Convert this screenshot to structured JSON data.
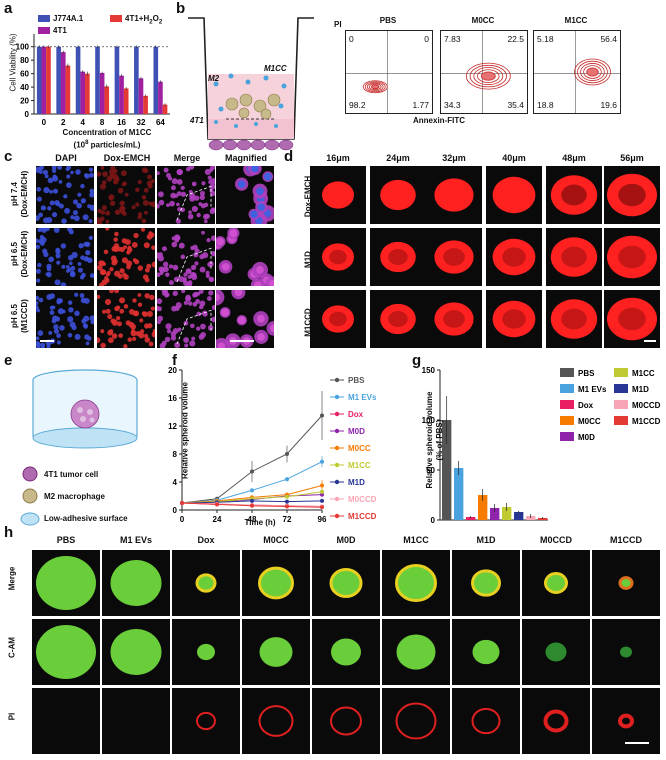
{
  "panels": {
    "a": "a",
    "b": "b",
    "c": "c",
    "d": "d",
    "e": "e",
    "f": "f",
    "g": "g",
    "h": "h"
  },
  "panel_a": {
    "chart_data": {
      "type": "bar",
      "categories": [
        "0",
        "2",
        "4",
        "8",
        "16",
        "32",
        "64"
      ],
      "series": [
        {
          "name": "J774A.1",
          "color": "#3f51b5",
          "values": [
            100,
            100,
            100,
            100,
            100,
            100,
            100
          ]
        },
        {
          "name": "4T1",
          "color": "#a020a0",
          "values": [
            100,
            92,
            63,
            61,
            57,
            53,
            48
          ]
        },
        {
          "name": "4T1+H2O2",
          "color": "#e53935",
          "values": [
            100,
            72,
            60,
            41,
            38,
            27,
            14
          ]
        }
      ],
      "errors": [
        [
          2,
          2,
          2,
          2,
          2,
          2,
          2
        ],
        [
          2,
          2,
          2,
          2,
          2,
          2,
          2
        ],
        [
          2,
          3,
          3,
          3,
          2,
          2,
          2
        ]
      ],
      "xlabel_line1": "Concentration of M1CC",
      "xlabel_line2": "(10",
      "xlabel_sup": "8",
      "xlabel_line2b": " particles/mL)",
      "ylabel": "Cell Viability (%)",
      "yticks": [
        "0",
        "20",
        "40",
        "60",
        "80",
        "100"
      ],
      "ylim": [
        0,
        110
      ],
      "dashed_line": 100
    },
    "legend": {
      "j774": "J774A.1",
      "h2o2": "4T1+H",
      "h2o2_sub": "2",
      "h2o2_o": "O",
      "h2o2_sub2": "2",
      "t41": "4T1"
    }
  },
  "panel_b": {
    "labels": {
      "m2": "M2",
      "m1cc": "M1CC",
      "t41": "4T1",
      "pi": "PI",
      "annexin": "Annexin-FITC"
    },
    "plots": [
      {
        "title": "PBS",
        "ul": "0",
        "ur": "0",
        "ll": "98.2",
        "lr": "1.77"
      },
      {
        "title": "M0CC",
        "ul": "7.83",
        "ur": "22.5",
        "ll": "34.3",
        "lr": "35.4"
      },
      {
        "title": "M1CC",
        "ul": "5.18",
        "ur": "56.4",
        "ll": "18.8",
        "lr": "19.6"
      }
    ]
  },
  "panel_c": {
    "cols": [
      "DAPI",
      "Dox-EMCH",
      "Merge",
      "Magnified"
    ],
    "rows": [
      {
        "l1": "pH 7.4",
        "l2": "(Dox-EMCH)"
      },
      {
        "l1": "pH 6.5",
        "l2": "(Dox-EMCH)"
      },
      {
        "l1": "pH 6.5",
        "l2": "(M1CCD)"
      }
    ]
  },
  "panel_d": {
    "cols": [
      "16μm",
      "24μm",
      "32μm",
      "40μm",
      "48μm",
      "56μm"
    ],
    "rows": [
      "Dox-EMCH",
      "M1D",
      "M1CCD"
    ]
  },
  "panel_e": {
    "legend": [
      "4T1 tumor cell",
      "M2 macrophage",
      "Low-adhesive surface"
    ]
  },
  "panel_f": {
    "chart_data": {
      "type": "line",
      "x": [
        0,
        24,
        48,
        72,
        96
      ],
      "xlabel": "Time (h)",
      "ylabel": "Relative spheroid volume",
      "xlim": [
        0,
        96
      ],
      "ylim": [
        0,
        20
      ],
      "yticks": [
        "0",
        "4",
        "8",
        "12",
        "16",
        "20"
      ],
      "xticks": [
        "0",
        "24",
        "48",
        "72",
        "96"
      ],
      "series": [
        {
          "name": "PBS",
          "color": "#555555",
          "marker": "circle",
          "values": [
            1,
            1.6,
            5.5,
            8,
            13.5
          ],
          "err": [
            0.2,
            0.3,
            1.5,
            1.2,
            3.5
          ]
        },
        {
          "name": "M1 EVs",
          "color": "#4aa3df",
          "marker": "triangle",
          "values": [
            1,
            1.4,
            2.8,
            4.4,
            6.9
          ],
          "err": [
            0.1,
            0.2,
            0.3,
            0.3,
            0.8
          ]
        },
        {
          "name": "Dox",
          "color": "#e91e63",
          "marker": "square",
          "values": [
            1,
            0.8,
            0.7,
            0.6,
            0.5
          ],
          "err": [
            0.1,
            0.1,
            0.1,
            0.1,
            0.1
          ]
        },
        {
          "name": "M0D",
          "color": "#8e24aa",
          "marker": "diamond",
          "values": [
            1,
            1.2,
            1.5,
            2,
            2.2
          ],
          "err": [
            0.1,
            0.1,
            0.2,
            0.2,
            0.3
          ]
        },
        {
          "name": "M0CC",
          "color": "#f57c00",
          "marker": "square",
          "values": [
            1,
            1.3,
            1.8,
            2.2,
            3.5
          ],
          "err": [
            0.1,
            0.2,
            0.3,
            0.3,
            0.8
          ]
        },
        {
          "name": "M1CC",
          "color": "#c0ca33",
          "marker": "triangle",
          "values": [
            1,
            1.2,
            1.6,
            1.9,
            2.6
          ],
          "err": [
            0.1,
            0.1,
            0.2,
            0.2,
            0.3
          ]
        },
        {
          "name": "M1D",
          "color": "#283593",
          "marker": "triangle",
          "values": [
            1,
            1.1,
            1.3,
            1.2,
            1.3
          ],
          "err": [
            0.1,
            0.1,
            0.1,
            0.1,
            0.1
          ]
        },
        {
          "name": "M0CCD",
          "color": "#f8a5b5",
          "marker": "circle",
          "values": [
            1,
            0.9,
            0.7,
            0.6,
            0.5
          ],
          "err": [
            0.1,
            0.1,
            0.1,
            0.1,
            0.1
          ]
        },
        {
          "name": "M1CCD",
          "color": "#e53935",
          "marker": "circle",
          "values": [
            1,
            0.8,
            0.6,
            0.5,
            0.4
          ],
          "err": [
            0.1,
            0.1,
            0.1,
            0.1,
            0.1
          ]
        }
      ]
    }
  },
  "panel_g": {
    "chart_data": {
      "type": "bar",
      "categories": [
        "PBS",
        "M1 EVs",
        "Dox",
        "M0CC",
        "M0D",
        "M1CC",
        "M1D",
        "M0CCD",
        "M1CCD"
      ],
      "values": [
        100,
        52,
        3,
        25,
        12,
        13,
        8,
        4,
        2
      ],
      "errors": [
        24,
        7,
        1,
        6,
        4,
        4,
        1,
        2,
        1
      ],
      "colors": [
        "#555555",
        "#4aa3df",
        "#e91e63",
        "#f57c00",
        "#8e24aa",
        "#c0ca33",
        "#283593",
        "#f8a5b5",
        "#e53935"
      ],
      "ylabel_line1": "Relative spheroid volume",
      "ylabel_line2": "(% of PBS)",
      "ylim": [
        0,
        150
      ],
      "yticks": [
        "0",
        "50",
        "100",
        "150"
      ]
    }
  },
  "panel_h": {
    "cols": [
      "PBS",
      "M1 EVs",
      "Dox",
      "M0CC",
      "M0D",
      "M1CC",
      "M1D",
      "M0CCD",
      "M1CCD"
    ],
    "rows": [
      "Merge",
      "C-AM",
      "PI"
    ]
  }
}
